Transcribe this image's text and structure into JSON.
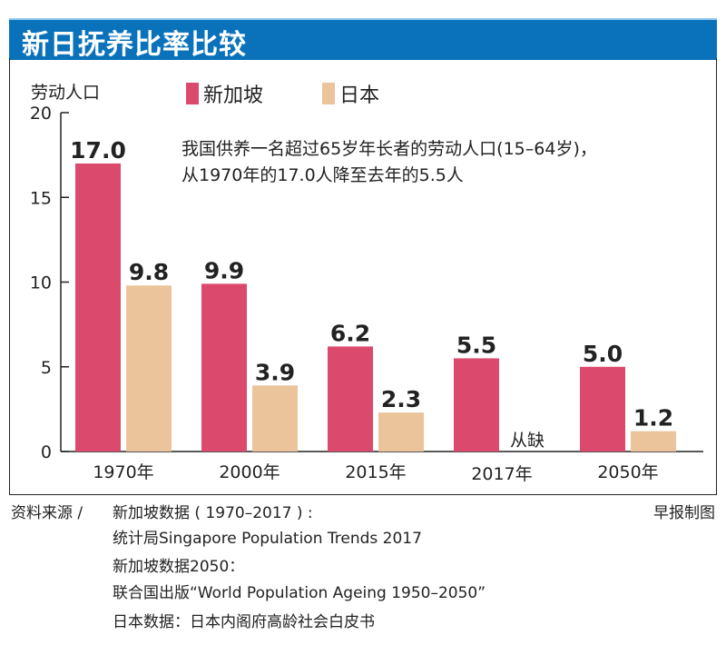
{
  "title": "新日抚养比率比较",
  "credit": "早报制图",
  "annotation": [
    "我国供养一名超过65岁年长者的劳动人口(15–64岁)，",
    "从1970年的17.0人降至去年的5.5人"
  ],
  "sources": {
    "label": "资料来源 /",
    "lines": [
      "新加坡数据 ( 1970–2017 ) :",
      "统计局Singapore Population Trends 2017",
      "新加坡数据2050：",
      "联合国出版“World Population Ageing 1950–2050”",
      "日本数据：日本内阁府高龄社会白皮书"
    ]
  },
  "chart_data": {
    "type": "bar",
    "title": "新日抚养比率比较",
    "ylabel": "劳动人口",
    "xlabel": "",
    "ylim": [
      0,
      20
    ],
    "yticks": [
      0,
      5,
      10,
      15,
      20
    ],
    "categories": [
      "1970年",
      "2000年",
      "2015年",
      "2017年",
      "2050年"
    ],
    "series": [
      {
        "name": "新加坡",
        "color": "#db4a6c",
        "values": [
          17.0,
          9.9,
          6.2,
          5.5,
          5.0
        ],
        "labels": [
          "17.0",
          "9.9",
          "6.2",
          "5.5",
          "5.0"
        ]
      },
      {
        "name": "日本",
        "color": "#ebc49c",
        "values": [
          9.8,
          3.9,
          2.3,
          null,
          1.2
        ],
        "labels": [
          "9.8",
          "3.9",
          "2.3",
          "从缺",
          "1.2"
        ]
      }
    ],
    "legend": "top",
    "missing_label": "从缺",
    "grid": false
  }
}
